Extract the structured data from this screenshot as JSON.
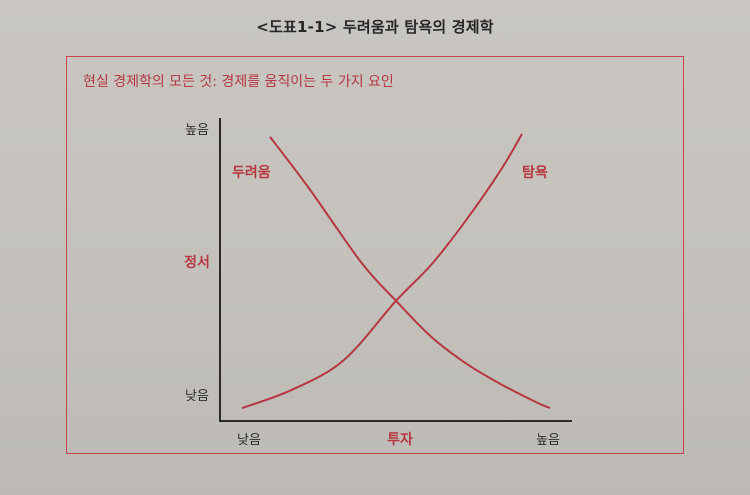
{
  "figure": {
    "title": "<도표1-1> 두려움과 탐욕의 경제학",
    "subtitle": "현실 경제학의 모든 것: 경제를 움직이는 두 가지 요인"
  },
  "colors": {
    "accent": "#b5383e",
    "curve": "#b5383e",
    "axis": "#2a2a2a",
    "text": "#262626"
  },
  "chart_data": {
    "type": "line",
    "title": "<도표1-1> 두려움과 탐욕의 경제학",
    "subtitle": "현실 경제학의 모든 것: 경제를 움직이는 두 가지 요인",
    "xlabel": "투자",
    "ylabel": "정서",
    "x_ticks": [
      "낮음",
      "높음"
    ],
    "y_ticks": [
      "낮음",
      "높음"
    ],
    "xlim": [
      0,
      1
    ],
    "ylim": [
      0,
      1
    ],
    "grid": false,
    "legend": "none (series labeled directly on chart)",
    "series": [
      {
        "name": "두려움",
        "x": [
          0.14,
          0.25,
          0.4,
          0.5,
          0.6,
          0.7,
          0.8,
          0.9,
          0.94
        ],
        "y": [
          0.95,
          0.78,
          0.53,
          0.4,
          0.28,
          0.19,
          0.12,
          0.06,
          0.04
        ]
      },
      {
        "name": "탐욕",
        "x": [
          0.06,
          0.2,
          0.35,
          0.5,
          0.6,
          0.7,
          0.8,
          0.86
        ],
        "y": [
          0.04,
          0.1,
          0.2,
          0.4,
          0.52,
          0.67,
          0.84,
          0.96
        ]
      }
    ]
  }
}
